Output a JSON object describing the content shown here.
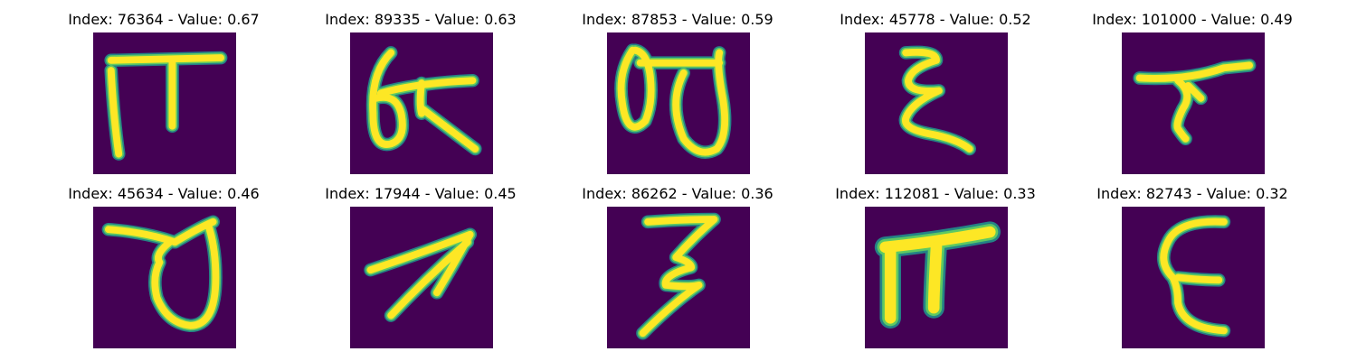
{
  "colors": {
    "background": "#440154",
    "stroke_outer": "#21918c",
    "stroke_mid": "#5ec962",
    "stroke_core": "#fde725"
  },
  "panels": [
    {
      "title": "Index: 76364 - Value: 0.67",
      "index": 76364,
      "value": 0.67
    },
    {
      "title": "Index: 89335 - Value: 0.63",
      "index": 89335,
      "value": 0.63
    },
    {
      "title": "Index: 87853 - Value: 0.59",
      "index": 87853,
      "value": 0.59
    },
    {
      "title": "Index: 45778 - Value: 0.52",
      "index": 45778,
      "value": 0.52
    },
    {
      "title": "Index: 101000 - Value: 0.49",
      "index": 101000,
      "value": 0.49
    },
    {
      "title": "Index: 45634 - Value: 0.46",
      "index": 45634,
      "value": 0.46
    },
    {
      "title": "Index: 17944 - Value: 0.45",
      "index": 17944,
      "value": 0.45
    },
    {
      "title": "Index: 86262 - Value: 0.36",
      "index": 86262,
      "value": 0.36
    },
    {
      "title": "Index: 112081 - Value: 0.33",
      "index": 112081,
      "value": 0.33
    },
    {
      "title": "Index: 82743 - Value: 0.32",
      "index": 82743,
      "value": 0.32
    }
  ]
}
